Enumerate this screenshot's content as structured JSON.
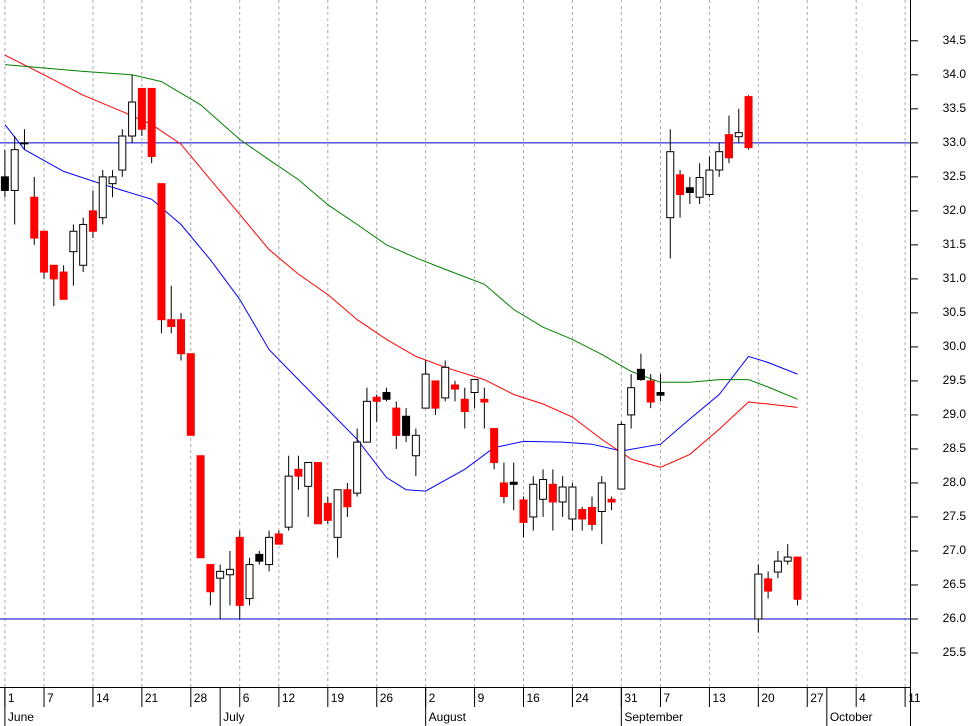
{
  "chart_data": {
    "type": "candlestick",
    "x": [
      0,
      1,
      2,
      3,
      4,
      5,
      6,
      7,
      8,
      9,
      10,
      11,
      12,
      13,
      14,
      15,
      16,
      17,
      18,
      19,
      20,
      21,
      22,
      23,
      24,
      25,
      26,
      27,
      28,
      29,
      30,
      31,
      32,
      33,
      34,
      35,
      36,
      37,
      38,
      39,
      40,
      41,
      42,
      43,
      44,
      45,
      46,
      47,
      48,
      49,
      50,
      51,
      52,
      53,
      54,
      55,
      56,
      57,
      58,
      59,
      60,
      61,
      62,
      63,
      64,
      65,
      66,
      67,
      68,
      69,
      70,
      71,
      72,
      73,
      74,
      75,
      76,
      77,
      78,
      79,
      80,
      81
    ],
    "open": [
      32.5,
      32.3,
      33.0,
      32.2,
      31.7,
      31.2,
      31.1,
      31.4,
      31.2,
      32.0,
      31.9,
      32.4,
      32.6,
      33.1,
      33.8,
      33.8,
      32.4,
      30.4,
      30.4,
      29.9,
      28.4,
      26.8,
      26.6,
      26.65,
      27.2,
      26.3,
      26.95,
      26.8,
      27.25,
      27.35,
      28.2,
      27.95,
      28.3,
      27.7,
      27.2,
      27.9,
      27.85,
      28.6,
      29.26,
      29.33,
      29.1,
      28.98,
      28.4,
      29.1,
      29.5,
      29.25,
      29.44,
      29.23,
      29.33,
      29.23,
      28.8,
      28.0,
      28.01,
      27.75,
      27.5,
      27.76,
      27.98,
      27.72,
      27.47,
      27.61,
      27.64,
      27.58,
      27.76,
      27.91,
      29.0,
      29.67,
      29.5,
      29.33,
      31.9,
      32.53,
      32.34,
      32.2,
      32.24,
      32.6,
      33.12,
      33.09,
      33.68,
      26.0,
      26.59,
      26.69,
      26.85,
      26.91
    ],
    "high": [
      32.9,
      33.1,
      33.2,
      32.5,
      31.7,
      31.2,
      31.2,
      31.8,
      31.9,
      32.3,
      32.6,
      32.6,
      33.2,
      34.0,
      33.8,
      33.8,
      32.4,
      30.9,
      30.5,
      29.9,
      28.4,
      26.8,
      26.8,
      27.0,
      27.3,
      26.9,
      27.0,
      27.3,
      27.3,
      28.4,
      28.4,
      28.3,
      28.3,
      27.8,
      27.9,
      28.0,
      28.8,
      29.4,
      29.3,
      29.4,
      29.2,
      29.1,
      28.8,
      29.8,
      29.5,
      29.8,
      29.5,
      29.4,
      29.5,
      29.4,
      28.8,
      28.3,
      28.3,
      27.8,
      28.1,
      28.2,
      28.2,
      28.1,
      28.0,
      27.65,
      27.8,
      28.1,
      27.8,
      28.9,
      29.6,
      29.9,
      29.6,
      29.6,
      33.2,
      32.6,
      32.5,
      32.7,
      32.8,
      33.0,
      33.4,
      33.5,
      33.7,
      26.8,
      26.7,
      27.0,
      27.1,
      26.91
    ],
    "low": [
      32.2,
      31.8,
      32.9,
      31.5,
      31.0,
      30.6,
      30.7,
      30.9,
      31.1,
      31.6,
      31.8,
      32.2,
      32.5,
      33.0,
      33.1,
      32.7,
      30.2,
      30.2,
      29.8,
      28.7,
      26.9,
      26.2,
      26.0,
      26.2,
      26.0,
      26.2,
      26.8,
      26.7,
      27.1,
      27.3,
      27.9,
      27.5,
      27.4,
      27.4,
      26.9,
      27.5,
      27.8,
      28.6,
      28.9,
      29.2,
      28.5,
      28.6,
      28.1,
      29.1,
      29.0,
      29.2,
      29.2,
      28.8,
      29.1,
      28.8,
      28.2,
      27.7,
      27.6,
      27.2,
      27.3,
      27.5,
      27.3,
      27.5,
      27.3,
      27.3,
      27.3,
      27.1,
      27.6,
      27.9,
      28.8,
      29.5,
      29.1,
      29.2,
      31.3,
      31.9,
      32.1,
      32.1,
      32.2,
      32.5,
      32.7,
      33.0,
      32.9,
      25.8,
      26.3,
      26.6,
      26.8,
      26.2
    ],
    "close": [
      32.3,
      32.9,
      33.0,
      31.6,
      31.1,
      31.0,
      30.7,
      31.7,
      31.8,
      31.7,
      32.5,
      32.5,
      33.1,
      33.6,
      33.2,
      32.8,
      30.4,
      30.3,
      29.9,
      28.7,
      26.9,
      26.4,
      26.7,
      26.73,
      26.2,
      26.8,
      26.85,
      27.2,
      27.1,
      28.1,
      28.1,
      28.3,
      27.4,
      27.45,
      27.9,
      27.65,
      28.6,
      29.2,
      29.2,
      29.23,
      28.7,
      28.7,
      28.7,
      29.6,
      29.1,
      29.7,
      29.38,
      29.05,
      29.52,
      29.19,
      28.3,
      27.8,
      27.98,
      27.42,
      27.98,
      28.05,
      27.72,
      27.94,
      27.94,
      27.47,
      27.39,
      28.0,
      27.72,
      28.86,
      29.4,
      29.52,
      29.19,
      29.29,
      32.87,
      32.24,
      32.27,
      32.49,
      32.6,
      32.87,
      32.78,
      33.15,
      32.93,
      26.66,
      26.41,
      26.85,
      26.91,
      26.29
    ],
    "fills": [
      "#000000",
      "#ffffff",
      "#ffffff",
      "#ff0000",
      "#ff0000",
      "#ff0000",
      "#ff0000",
      "#ffffff",
      "#ffffff",
      "#ff0000",
      "#ffffff",
      "#ffffff",
      "#ffffff",
      "#ffffff",
      "#ff0000",
      "#ff0000",
      "#ff0000",
      "#ff0000",
      "#ff0000",
      "#ff0000",
      "#ff0000",
      "#ff0000",
      "#ffffff",
      "#ffffff",
      "#ff0000",
      "#ffffff",
      "#000000",
      "#ffffff",
      "#ff0000",
      "#ffffff",
      "#ff0000",
      "#ffffff",
      "#ff0000",
      "#ff0000",
      "#ffffff",
      "#ff0000",
      "#ffffff",
      "#ffffff",
      "#ff0000",
      "#000000",
      "#ff0000",
      "#000000",
      "#ffffff",
      "#ffffff",
      "#ff0000",
      "#ffffff",
      "#ff0000",
      "#ff0000",
      "#ffffff",
      "#ff0000",
      "#ff0000",
      "#ff0000",
      "#000000",
      "#ff0000",
      "#ffffff",
      "#ffffff",
      "#ff0000",
      "#ffffff",
      "#ffffff",
      "#ff0000",
      "#ff0000",
      "#ffffff",
      "#ff0000",
      "#ffffff",
      "#ffffff",
      "#000000",
      "#ff0000",
      "#000000",
      "#ffffff",
      "#ff0000",
      "#000000",
      "#ffffff",
      "#ffffff",
      "#ffffff",
      "#ff0000",
      "#ffffff",
      "#ff0000",
      "#ffffff",
      "#ff0000",
      "#ffffff",
      "#ffffff",
      "#ff0000"
    ],
    "lines": [
      {
        "color": "#0000ff",
        "x": [
          0,
          2,
          6,
          10,
          15,
          18,
          21,
          24,
          27,
          30,
          33,
          36,
          39,
          41,
          43,
          47,
          50,
          53,
          57,
          60,
          63,
          67,
          70,
          73,
          76,
          78,
          81
        ],
        "values": [
          33.27,
          32.9,
          32.58,
          32.39,
          32.17,
          31.8,
          31.28,
          30.7,
          29.96,
          29.52,
          29.08,
          28.64,
          28.08,
          27.9,
          27.88,
          28.2,
          28.52,
          28.61,
          28.6,
          28.57,
          28.47,
          28.57,
          28.94,
          29.3,
          29.86,
          29.77,
          29.6
        ]
      },
      {
        "color": "#ff0000",
        "x": [
          0,
          4,
          8,
          12,
          15,
          18,
          21,
          24,
          27,
          30,
          33,
          36,
          39,
          42,
          45,
          49,
          52,
          55,
          58,
          61,
          64,
          67,
          70,
          73,
          76,
          78,
          81
        ],
        "values": [
          34.29,
          34.0,
          33.7,
          33.46,
          33.27,
          32.98,
          32.46,
          31.95,
          31.43,
          31.07,
          30.77,
          30.4,
          30.11,
          29.86,
          29.7,
          29.52,
          29.3,
          29.16,
          28.97,
          28.64,
          28.35,
          28.23,
          28.42,
          28.79,
          29.19,
          29.16,
          29.11
        ]
      },
      {
        "color": "#008000",
        "x": [
          0,
          4,
          8,
          13,
          16,
          20,
          24,
          27,
          30,
          33,
          36,
          39,
          42,
          45,
          49,
          52,
          55,
          58,
          61,
          64,
          67,
          70,
          73,
          76,
          78,
          81
        ],
        "values": [
          34.15,
          34.1,
          34.05,
          34.0,
          33.9,
          33.56,
          33.05,
          32.75,
          32.46,
          32.09,
          31.8,
          31.5,
          31.31,
          31.14,
          30.92,
          30.55,
          30.29,
          30.11,
          29.89,
          29.64,
          29.48,
          29.48,
          29.52,
          29.52,
          29.41,
          29.23
        ]
      }
    ],
    "hlines": [
      33.0,
      26.0
    ],
    "hline_color": "#0000cc",
    "xlim": [
      -0.5,
      92.5
    ],
    "ylim": [
      25.0,
      35.1
    ],
    "yticks": [
      25.5,
      {
        "value": 26,
        "label": "26.0"
      },
      26.5,
      {
        "value": 27,
        "label": "27.0"
      },
      27.5,
      {
        "value": 28,
        "label": "28.0"
      },
      28.5,
      {
        "value": 29,
        "label": "29.0"
      },
      29.5,
      {
        "value": 30,
        "label": "30.0"
      },
      30.5,
      {
        "value": 31,
        "label": "31.0"
      },
      31.5,
      {
        "value": 32,
        "label": "32.0"
      },
      32.5,
      {
        "value": 33,
        "label": "33.0"
      },
      33.5,
      {
        "value": 34,
        "label": "34.0"
      },
      34.5
    ],
    "xticks": [
      {
        "value": 0,
        "label": "1"
      },
      {
        "value": 4,
        "label": "7"
      },
      {
        "value": 9,
        "label": "14"
      },
      {
        "value": 14,
        "label": "21"
      },
      {
        "value": 19,
        "label": "28"
      },
      {
        "value": 24,
        "label": "6"
      },
      {
        "value": 28,
        "label": "12"
      },
      {
        "value": 33,
        "label": "19"
      },
      {
        "value": 38,
        "label": "26"
      },
      {
        "value": 43,
        "label": "2"
      },
      {
        "value": 48,
        "label": "9"
      },
      {
        "value": 53,
        "label": "16"
      },
      {
        "value": 58,
        "label": "24"
      },
      {
        "value": 63,
        "label": "31"
      },
      {
        "value": 67,
        "label": "7"
      },
      {
        "value": 72,
        "label": "13"
      },
      {
        "value": 77,
        "label": "20"
      },
      {
        "value": 82,
        "label": "27"
      },
      {
        "value": 87,
        "label": "4"
      },
      {
        "value": 92,
        "label": "11"
      }
    ],
    "months": [
      {
        "value": 0,
        "label": "June"
      },
      {
        "value": 22,
        "label": "July"
      },
      {
        "value": 43,
        "label": "August"
      },
      {
        "value": 63,
        "label": "September"
      },
      {
        "value": 84,
        "label": "October"
      }
    ],
    "grid": true
  }
}
